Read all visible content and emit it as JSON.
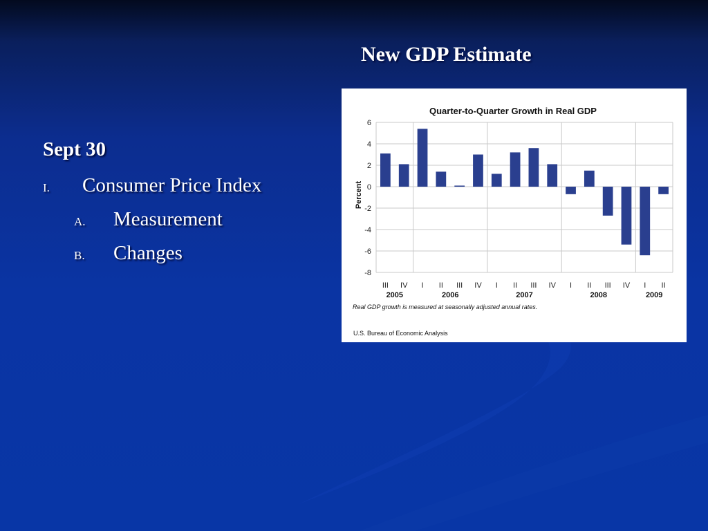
{
  "slide": {
    "title": "New GDP Estimate",
    "heading": "Sept 30",
    "outline": [
      {
        "marker": "I.",
        "text": "Consumer Price Index"
      },
      {
        "marker": "A.",
        "text": "Measurement"
      },
      {
        "marker": "B.",
        "text": "Changes"
      }
    ]
  },
  "chart_data": {
    "type": "bar",
    "title": "Quarter-to-Quarter Growth in Real GDP",
    "xlabel": "",
    "ylabel": "Percent",
    "ylim": [
      -8,
      6
    ],
    "yticks": [
      6,
      4,
      2,
      0,
      -2,
      -4,
      -6,
      -8
    ],
    "grid": true,
    "bar_color": "#2a3f8f",
    "categories": [
      "III",
      "IV",
      "I",
      "II",
      "III",
      "IV",
      "I",
      "II",
      "III",
      "IV",
      "I",
      "II",
      "III",
      "IV",
      "I",
      "II"
    ],
    "years": [
      {
        "label": "2005",
        "quarters": [
          "III",
          "IV"
        ]
      },
      {
        "label": "2006",
        "quarters": [
          "I",
          "II",
          "III",
          "IV"
        ]
      },
      {
        "label": "2007",
        "quarters": [
          "I",
          "II",
          "III",
          "IV"
        ]
      },
      {
        "label": "2008",
        "quarters": [
          "I",
          "II",
          "III",
          "IV"
        ]
      },
      {
        "label": "2009",
        "quarters": [
          "I",
          "II"
        ]
      }
    ],
    "values": [
      3.1,
      2.1,
      5.4,
      1.4,
      0.1,
      3.0,
      1.2,
      3.2,
      3.6,
      2.1,
      -0.7,
      1.5,
      -2.7,
      -5.4,
      -6.4,
      -0.7
    ],
    "note": "Real GDP growth is measured at seasonally adjusted annual rates.",
    "source": "U.S. Bureau of Economic Analysis"
  }
}
